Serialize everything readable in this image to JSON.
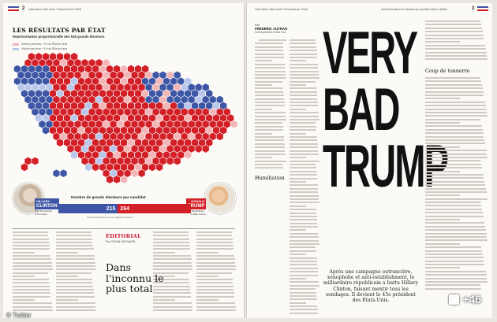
{
  "left_page": {
    "folio": "Libération Mercredi 9 Novembre 2016",
    "page_number": "2",
    "map_title": "LES RÉSULTATS PAR ÉTAT",
    "map_subtitle": "Représentation proportionnelle des 538 grands électeurs",
    "legend": [
      {
        "label": "Victoire parti avec + 1% de l'État en hexa",
        "color": "#f2b6b6"
      },
      {
        "label": "Victoire parti avec + 1% de l'État en hexa",
        "color": "#b9c7ea"
      }
    ],
    "bar": {
      "label": "Nombre de grands électeurs par candidat",
      "clinton_value": "215",
      "trump_value": "264",
      "clinton_share": 0.449,
      "trump_share": 0.551,
      "note": "270 grands électeurs au plus gagnent l'élection"
    },
    "clinton": {
      "first": "HILLARY",
      "last": "CLINTON",
      "role": "Parti Démocrate",
      "running_mate": "& Tim Kaine"
    },
    "trump": {
      "first": "DONALD",
      "last": "TRUMP",
      "role": "Parti Républicain",
      "running_mate": "& Mike Pence"
    },
    "editorial": {
      "label": "ÉDITORIAL",
      "author": "Par JOHAN HUFNAGEL",
      "title": "Dans l'inconnu le plus total"
    }
  },
  "right_page": {
    "folio": "Libération Mercredi 9 Novembre 2016",
    "folio_right": "www.liberation.fr  facebook.com/liberation  @libe",
    "page_number": "3",
    "byline_par": "Par",
    "byline_name": "FRÉDÉRIC AUTRAN",
    "byline_role": "Correspondant à New York",
    "subhead_1": "Humiliation",
    "subhead_2": "Coup de tonnerre",
    "headline": [
      "VERY",
      "BAD",
      "TRUMP"
    ],
    "deck": "Après une campagne outrancière, xénophobe et anti-establishment, le milliardaire républicain a battu Hillary Clinton, faisant mentir tous les sondages. Il devient le 45e président des Etats-Unis."
  },
  "overlay": {
    "twitter": "© Twitter",
    "plus": "+46"
  },
  "colors": {
    "gop_red": "#d31f26",
    "gop_light": "#f2b6b6",
    "dem_blue": "#3d56a6",
    "dem_light": "#b9c7ea"
  }
}
